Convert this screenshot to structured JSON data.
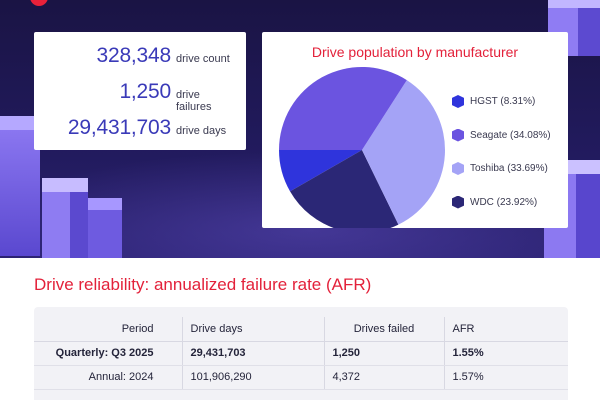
{
  "stats": {
    "drive_count": {
      "value": "328,348",
      "label": "drive count"
    },
    "drive_failures": {
      "value": "1,250",
      "label": "drive failures"
    },
    "drive_days": {
      "value": "29,431,703",
      "label": "drive days"
    }
  },
  "colors": {
    "hero_bg": "#211a5c",
    "accent_red": "#e3213a",
    "stat_blue": "#3a3ab8"
  },
  "chart_data": {
    "type": "pie",
    "title": "Drive population by manufacturer",
    "slices": [
      {
        "name": "HGST",
        "value": 8.31,
        "legend": "HGST (8.31%)",
        "color": "#2f34dc"
      },
      {
        "name": "Seagate",
        "value": 34.08,
        "legend": "Seagate (34.08%)",
        "color": "#6b54e0"
      },
      {
        "name": "Toshiba",
        "value": 33.69,
        "legend": "Toshiba (33.69%)",
        "color": "#a4a3f6"
      },
      {
        "name": "WDC",
        "value": 23.92,
        "legend": "WDC (23.92%)",
        "color": "#2b2776"
      }
    ],
    "legend_position": "right"
  },
  "afr": {
    "title": "Drive reliability: annualized failure rate (AFR)",
    "headers": [
      "Period",
      "Drive days",
      "Drives failed",
      "AFR"
    ],
    "rows": [
      [
        "Quarterly: Q3 2025",
        "29,431,703",
        "1,250",
        "1.55%"
      ],
      [
        "Annual: 2024",
        "101,906,290",
        "4,372",
        "1.57%"
      ]
    ]
  }
}
